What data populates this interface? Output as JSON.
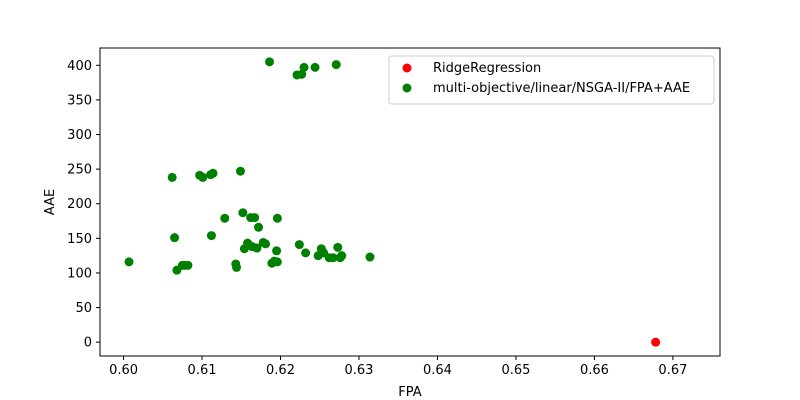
{
  "chart_data": {
    "type": "scatter",
    "title": "",
    "xlabel": "FPA",
    "ylabel": "AAE",
    "xlim": [
      0.597,
      0.676
    ],
    "ylim": [
      -20,
      425
    ],
    "xticks": [
      "0.60",
      "0.61",
      "0.62",
      "0.63",
      "0.64",
      "0.65",
      "0.66",
      "0.67"
    ],
    "xtick_values": [
      0.6,
      0.61,
      0.62,
      0.63,
      0.64,
      0.65,
      0.66,
      0.67
    ],
    "yticks": [
      "0",
      "50",
      "100",
      "150",
      "200",
      "250",
      "300",
      "350",
      "400"
    ],
    "ytick_values": [
      0,
      50,
      100,
      150,
      200,
      250,
      300,
      350,
      400
    ],
    "grid": false,
    "legend_position": "top-right",
    "series": [
      {
        "name": "RidgeRegression",
        "color": "#ff0000",
        "points": [
          [
            0.6678,
            0
          ]
        ]
      },
      {
        "name": "multi-objective/linear/NSGA-II/FPA+AAE",
        "color": "#008000",
        "points": [
          [
            0.6007,
            116
          ],
          [
            0.6062,
            238
          ],
          [
            0.6065,
            151
          ],
          [
            0.6068,
            104
          ],
          [
            0.6075,
            111
          ],
          [
            0.6078,
            111
          ],
          [
            0.6082,
            111
          ],
          [
            0.6097,
            241
          ],
          [
            0.6101,
            238
          ],
          [
            0.6111,
            242
          ],
          [
            0.6112,
            154
          ],
          [
            0.6114,
            244
          ],
          [
            0.6129,
            179
          ],
          [
            0.6143,
            113
          ],
          [
            0.6144,
            108
          ],
          [
            0.6149,
            247
          ],
          [
            0.6152,
            187
          ],
          [
            0.6154,
            135
          ],
          [
            0.6158,
            143
          ],
          [
            0.6162,
            180
          ],
          [
            0.6164,
            138
          ],
          [
            0.6167,
            180
          ],
          [
            0.617,
            136
          ],
          [
            0.6172,
            166
          ],
          [
            0.6178,
            144
          ],
          [
            0.6181,
            142
          ],
          [
            0.6186,
            405
          ],
          [
            0.6189,
            114
          ],
          [
            0.6192,
            117
          ],
          [
            0.6195,
            132
          ],
          [
            0.6196,
            116
          ],
          [
            0.6196,
            179
          ],
          [
            0.6221,
            386
          ],
          [
            0.6224,
            141
          ],
          [
            0.6227,
            387
          ],
          [
            0.623,
            397
          ],
          [
            0.6232,
            129
          ],
          [
            0.6244,
            397
          ],
          [
            0.6248,
            125
          ],
          [
            0.6252,
            135
          ],
          [
            0.6255,
            129
          ],
          [
            0.6262,
            122
          ],
          [
            0.6267,
            122
          ],
          [
            0.6271,
            401
          ],
          [
            0.6273,
            137
          ],
          [
            0.6276,
            122
          ],
          [
            0.6278,
            125
          ],
          [
            0.6314,
            123
          ]
        ]
      }
    ]
  }
}
